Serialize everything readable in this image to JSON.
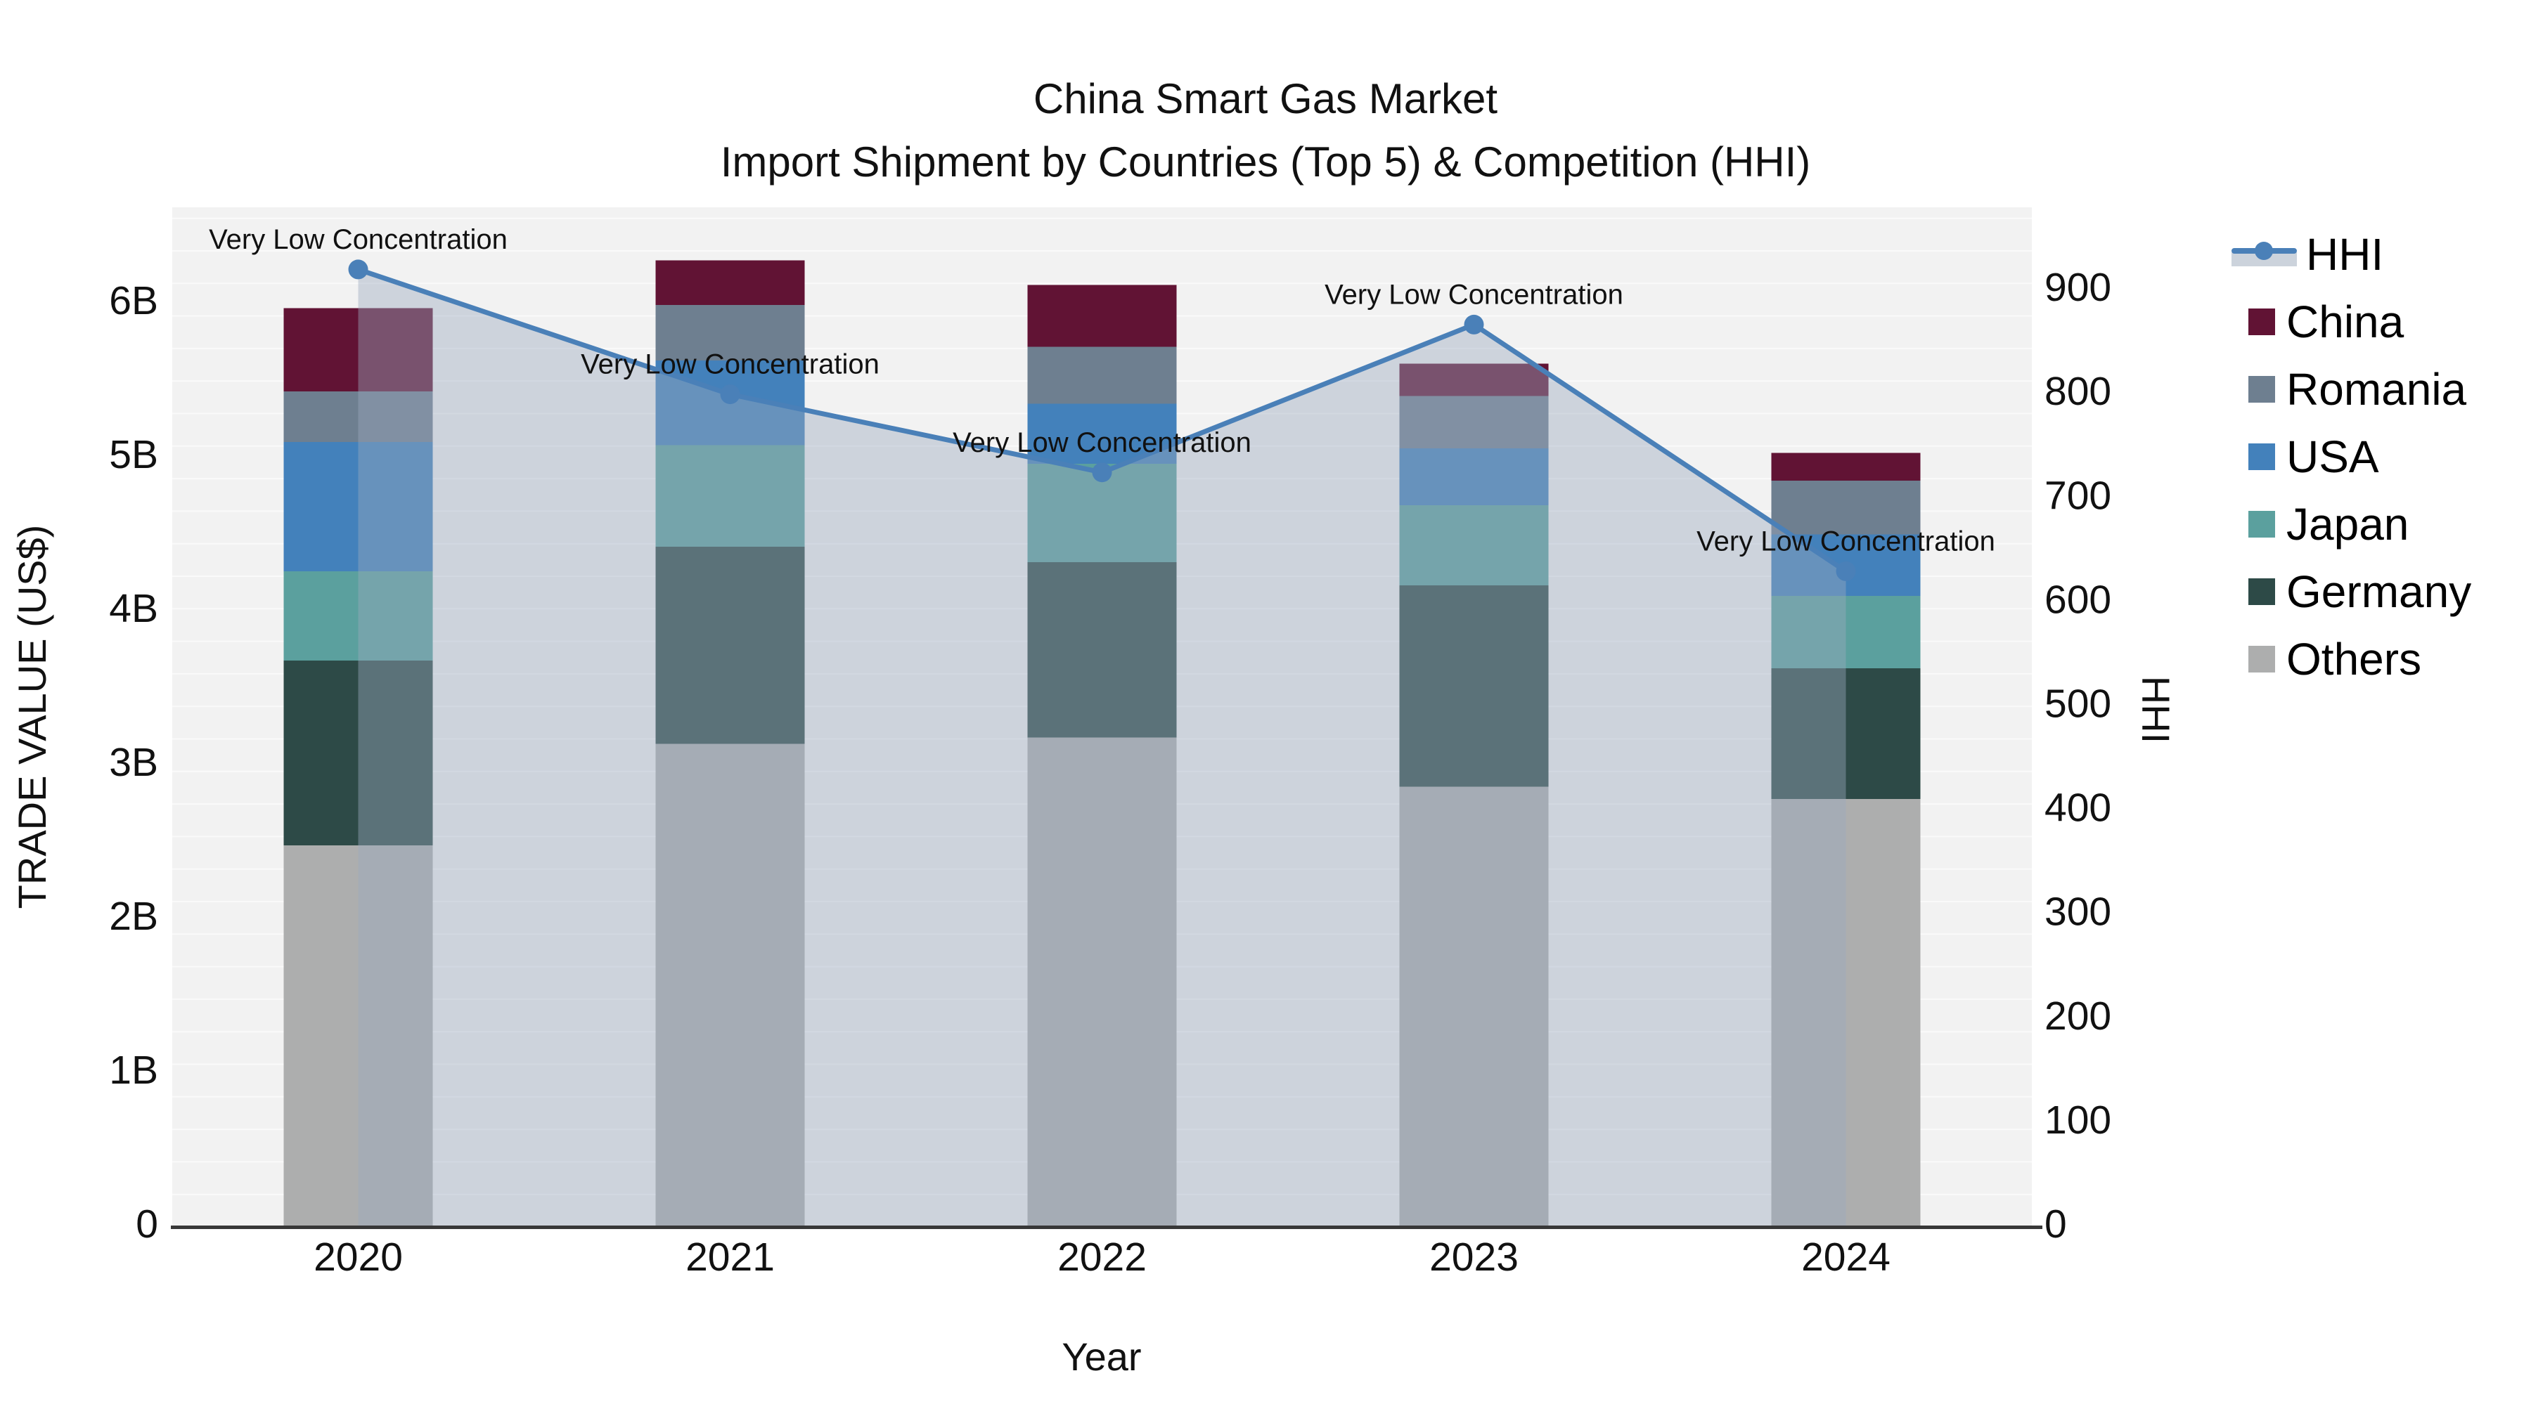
{
  "title": {
    "line1": "China Smart Gas Market",
    "line2": "Import Shipment by Countries (Top 5) & Competition (HHI)"
  },
  "axes": {
    "x": {
      "title": "Year",
      "tick_labels": [
        "2020",
        "2021",
        "2022",
        "2023",
        "2024"
      ]
    },
    "y_left": {
      "title": "TRADE VALUE (US$)",
      "tick_labels": [
        "0",
        "1B",
        "2B",
        "3B",
        "4B",
        "5B",
        "6B"
      ]
    },
    "y_right": {
      "title": "HHI",
      "tick_labels": [
        "0",
        "100",
        "200",
        "300",
        "400",
        "500",
        "600",
        "700",
        "800",
        "900"
      ]
    }
  },
  "legend": {
    "items": [
      {
        "label": "HHI",
        "type": "line",
        "color": "#4a80b8",
        "band_color": "#ccd3dc"
      },
      {
        "label": "China",
        "type": "swatch",
        "color": "#611334"
      },
      {
        "label": "Romania",
        "type": "swatch",
        "color": "#6e7f90"
      },
      {
        "label": "USA",
        "type": "swatch",
        "color": "#4381bb"
      },
      {
        "label": "Japan",
        "type": "swatch",
        "color": "#5ba09e"
      },
      {
        "label": "Germany",
        "type": "swatch",
        "color": "#2d4a47"
      },
      {
        "label": "Others",
        "type": "swatch",
        "color": "#adaeae"
      }
    ]
  },
  "colors": {
    "plot_bg": "#f2f2f2",
    "grid": "#fbfbfb",
    "axis_line": "#383838",
    "text": "#111111",
    "hhi_line": "#4a80b8",
    "hhi_area_fill": "rgba(155,170,190,0.42)"
  },
  "chart_data": {
    "type": "bar+line",
    "title": "China Smart Gas Market — Import Shipment by Countries (Top 5) & Competition (HHI)",
    "xlabel": "Year",
    "ylabel_left": "TRADE VALUE (US$)",
    "ylabel_right": "HHI",
    "categories": [
      "2020",
      "2021",
      "2022",
      "2023",
      "2024"
    ],
    "bar_value_unit": "billions of US$",
    "stack_order_top_to_bottom": [
      "China",
      "Romania",
      "USA",
      "Japan",
      "Germany",
      "Others"
    ],
    "series": [
      {
        "name": "China",
        "color": "#611334",
        "values": [
          0.54,
          0.29,
          0.4,
          0.21,
          0.18
        ]
      },
      {
        "name": "Romania",
        "color": "#6e7f90",
        "values": [
          0.33,
          0.36,
          0.37,
          0.34,
          0.35
        ]
      },
      {
        "name": "USA",
        "color": "#4381bb",
        "values": [
          0.84,
          0.55,
          0.39,
          0.37,
          0.4
        ]
      },
      {
        "name": "Japan",
        "color": "#5ba09e",
        "values": [
          0.58,
          0.66,
          0.64,
          0.52,
          0.47
        ]
      },
      {
        "name": "Germany",
        "color": "#2d4a47",
        "values": [
          1.2,
          1.28,
          1.14,
          1.31,
          0.85
        ]
      },
      {
        "name": "Others",
        "color": "#adaeae",
        "values": [
          2.48,
          3.14,
          3.18,
          2.86,
          2.78
        ]
      }
    ],
    "bar_totals": [
      5.97,
      6.28,
      6.12,
      5.61,
      5.03
    ],
    "line_series": {
      "name": "HHI",
      "color": "#4a80b8",
      "area_fill": "rgba(155,170,190,0.42)",
      "values": [
        920,
        800,
        725,
        867,
        630
      ],
      "point_annotations": [
        "Very Low Concentration",
        "Very Low Concentration",
        "Very Low Concentration",
        "Very Low Concentration",
        "Very Low Concentration"
      ]
    },
    "ylim_left": [
      0,
      6.63
    ],
    "ylim_right": [
      0,
      980
    ],
    "grid": true,
    "legend_position": "right",
    "plot_bg": "#f2f2f2"
  }
}
